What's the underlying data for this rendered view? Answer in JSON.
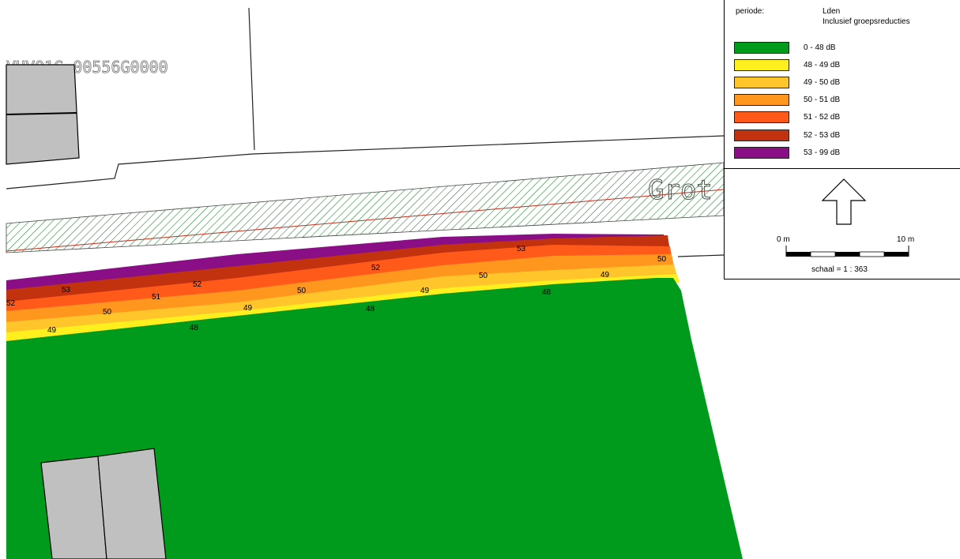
{
  "map": {
    "parcel_id": "VHV01G 00556G0000",
    "street_name": "Grot",
    "contour_labels": [
      "52",
      "53",
      "49",
      "50",
      "51",
      "52",
      "48",
      "49",
      "50",
      "48",
      "52",
      "49",
      "50",
      "53",
      "48",
      "49",
      "50"
    ]
  },
  "legend": {
    "periode_label": "periode:",
    "periode_value": "Lden",
    "periode_note": "Inclusief groepsreducties",
    "items": [
      {
        "label": "0 - 48 dB",
        "color": "#009b1c"
      },
      {
        "label": "48 - 49 dB",
        "color": "#ffef1f"
      },
      {
        "label": "49 - 50 dB",
        "color": "#ffc52a"
      },
      {
        "label": "50 - 51 dB",
        "color": "#ff961d"
      },
      {
        "label": "51 - 52 dB",
        "color": "#ff5a1a"
      },
      {
        "label": "52 - 53 dB",
        "color": "#c3320f"
      },
      {
        "label": "53 - 99 dB",
        "color": "#8a0f87"
      }
    ]
  },
  "scale": {
    "left_label": "0 m",
    "right_label": "10 m",
    "caption": "schaal = 1 : 363"
  }
}
